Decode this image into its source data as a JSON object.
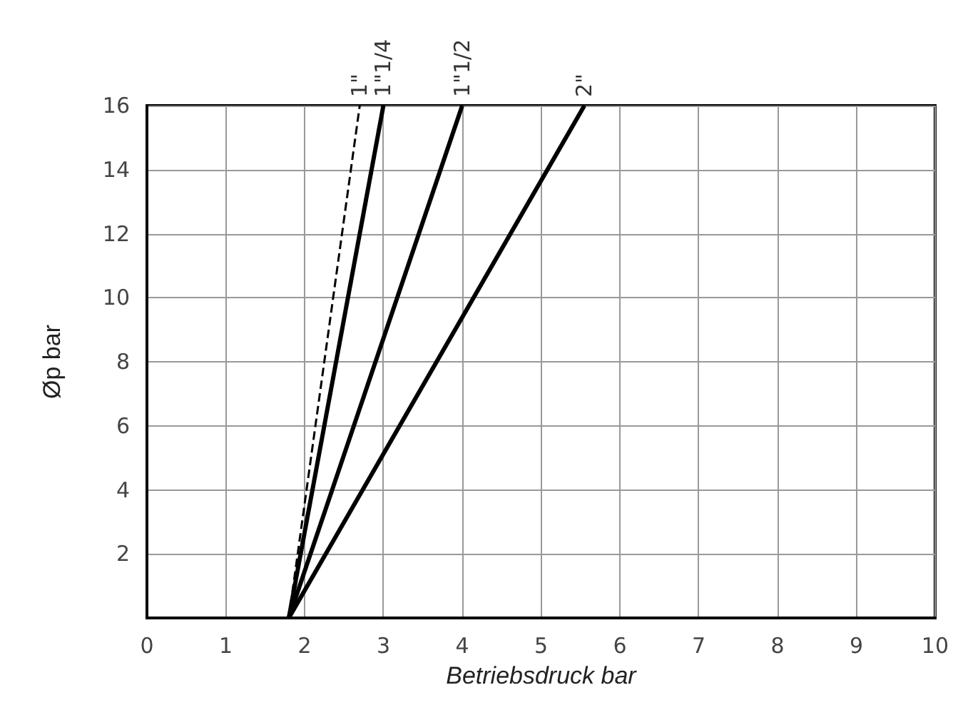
{
  "chart_data": {
    "type": "line",
    "xlabel": "Betriebsdruck bar",
    "ylabel": "Øp bar",
    "xlim": [
      0,
      10
    ],
    "ylim": [
      0,
      16
    ],
    "xticks": [
      0,
      1,
      2,
      3,
      4,
      5,
      6,
      7,
      8,
      9,
      10
    ],
    "yticks": [
      {
        "value": 0,
        "label": null
      },
      2,
      4,
      6,
      8,
      10,
      12,
      14,
      16
    ],
    "grid": true,
    "legend": false,
    "marker": "none",
    "series": [
      {
        "name": "1\"",
        "color": "#000000",
        "x": [
          1.8,
          2.7
        ],
        "values": [
          0,
          16
        ],
        "line_style": "dashed"
      },
      {
        "name": "1\"1/4",
        "color": "#000000",
        "x": [
          1.8,
          3.0
        ],
        "values": [
          0,
          16
        ],
        "line_style": "solid"
      },
      {
        "name": "1\"1/2",
        "color": "#000000",
        "x": [
          1.8,
          4.0
        ],
        "values": [
          0,
          16
        ],
        "line_style": "solid"
      },
      {
        "name": "2\"",
        "color": "#000000",
        "x": [
          1.8,
          5.55
        ],
        "values": [
          0,
          16
        ],
        "line_style": "solid"
      }
    ]
  }
}
